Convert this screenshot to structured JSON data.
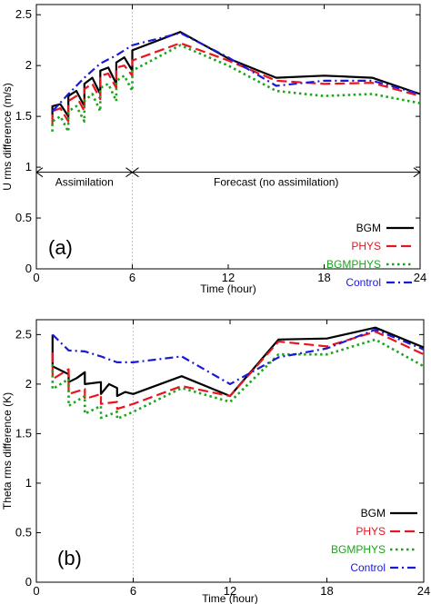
{
  "chart_data": [
    {
      "type": "line",
      "panel_label": "(a)",
      "xlabel": "Time (hour)",
      "ylabel": "U rms difference (m/s)",
      "xlim": [
        0,
        24
      ],
      "ylim": [
        0,
        2.6
      ],
      "xticks": [
        0,
        6,
        12,
        18,
        24
      ],
      "yticks": [
        0,
        0.5,
        1,
        1.5,
        2,
        2.5
      ],
      "ytick_labels": [
        "0",
        "0.5",
        "1",
        "1.5",
        "2",
        "2.5"
      ],
      "grid": false,
      "legend_position": "lower-right",
      "vertical_marker_x": 6,
      "annotations": {
        "assimilation_label": "Assimilation",
        "forecast_label": "Forecast (no assimilation)",
        "arrow_y": 0.95
      },
      "series": [
        {
          "name": "BGM",
          "color": "#000000",
          "dash": "solid",
          "points": [
            [
              1,
              1.45
            ],
            [
              1,
              1.6
            ],
            [
              1.5,
              1.62
            ],
            [
              2,
              1.5
            ],
            [
              2,
              1.7
            ],
            [
              2.5,
              1.75
            ],
            [
              3,
              1.6
            ],
            [
              3,
              1.82
            ],
            [
              3.5,
              1.88
            ],
            [
              4,
              1.72
            ],
            [
              4,
              1.95
            ],
            [
              4.5,
              1.98
            ],
            [
              5,
              1.82
            ],
            [
              5,
              2.03
            ],
            [
              5.5,
              2.08
            ],
            [
              6,
              1.95
            ],
            [
              6,
              2.15
            ],
            [
              9,
              2.33
            ],
            [
              12,
              2.07
            ],
            [
              15,
              1.88
            ],
            [
              18,
              1.9
            ],
            [
              21,
              1.88
            ],
            [
              24,
              1.72
            ]
          ]
        },
        {
          "name": "PHYS",
          "color": "#e8141e",
          "dash": "dashed",
          "points": [
            [
              1,
              1.42
            ],
            [
              1,
              1.55
            ],
            [
              1.5,
              1.58
            ],
            [
              2,
              1.45
            ],
            [
              2,
              1.65
            ],
            [
              2.5,
              1.7
            ],
            [
              3,
              1.55
            ],
            [
              3,
              1.77
            ],
            [
              3.5,
              1.82
            ],
            [
              4,
              1.67
            ],
            [
              4,
              1.9
            ],
            [
              4.5,
              1.92
            ],
            [
              5,
              1.78
            ],
            [
              5,
              1.98
            ],
            [
              5.5,
              2.0
            ],
            [
              6,
              1.9
            ],
            [
              6,
              2.05
            ],
            [
              9,
              2.22
            ],
            [
              12,
              2.05
            ],
            [
              15,
              1.85
            ],
            [
              18,
              1.82
            ],
            [
              21,
              1.83
            ],
            [
              24,
              1.7
            ]
          ]
        },
        {
          "name": "BGMPHYS",
          "color": "#1aa51a",
          "dash": "dotted",
          "points": [
            [
              1,
              1.35
            ],
            [
              1,
              1.45
            ],
            [
              1.5,
              1.5
            ],
            [
              2,
              1.35
            ],
            [
              2,
              1.55
            ],
            [
              2.5,
              1.6
            ],
            [
              3,
              1.45
            ],
            [
              3,
              1.65
            ],
            [
              3.5,
              1.72
            ],
            [
              4,
              1.55
            ],
            [
              4,
              1.78
            ],
            [
              4.5,
              1.82
            ],
            [
              5,
              1.65
            ],
            [
              5,
              1.85
            ],
            [
              5.5,
              1.9
            ],
            [
              6,
              1.75
            ],
            [
              6,
              1.95
            ],
            [
              9,
              2.2
            ],
            [
              12,
              2.0
            ],
            [
              15,
              1.75
            ],
            [
              18,
              1.7
            ],
            [
              21,
              1.72
            ],
            [
              24,
              1.63
            ]
          ]
        },
        {
          "name": "Control",
          "color": "#1a1ad6",
          "dash": "dashdot",
          "points": [
            [
              1,
              1.55
            ],
            [
              2,
              1.72
            ],
            [
              3,
              1.88
            ],
            [
              4,
              2.02
            ],
            [
              5,
              2.1
            ],
            [
              6,
              2.2
            ],
            [
              9,
              2.32
            ],
            [
              12,
              2.08
            ],
            [
              15,
              1.8
            ],
            [
              18,
              1.85
            ],
            [
              21,
              1.85
            ],
            [
              24,
              1.72
            ]
          ]
        }
      ]
    },
    {
      "type": "line",
      "panel_label": "(b)",
      "xlabel": "Time (hour)",
      "ylabel": "Theta rms difference (K)",
      "xlim": [
        0,
        24
      ],
      "ylim": [
        0,
        2.65
      ],
      "xticks": [
        0,
        6,
        12,
        18,
        24
      ],
      "yticks": [
        0,
        0.5,
        1,
        1.5,
        2,
        2.5
      ],
      "ytick_labels": [
        "0",
        "0.5",
        "1",
        "1.5",
        "2",
        "2.5"
      ],
      "grid": false,
      "legend_position": "lower-right",
      "vertical_marker_x": 6,
      "series": [
        {
          "name": "BGM",
          "color": "#000000",
          "dash": "solid",
          "points": [
            [
              1,
              2.5
            ],
            [
              1,
              2.18
            ],
            [
              2,
              2.1
            ],
            [
              2,
              2.02
            ],
            [
              2.5,
              2.06
            ],
            [
              3,
              2.12
            ],
            [
              3,
              2.0
            ],
            [
              4,
              2.02
            ],
            [
              4,
              1.9
            ],
            [
              4.5,
              2.0
            ],
            [
              5,
              1.96
            ],
            [
              5,
              1.88
            ],
            [
              5.5,
              1.92
            ],
            [
              6,
              1.9
            ],
            [
              9,
              2.08
            ],
            [
              12,
              1.88
            ],
            [
              15,
              2.45
            ],
            [
              18,
              2.46
            ],
            [
              21,
              2.57
            ],
            [
              24,
              2.37
            ]
          ]
        },
        {
          "name": "PHYS",
          "color": "#e8141e",
          "dash": "dashed",
          "points": [
            [
              1,
              2.32
            ],
            [
              1,
              2.05
            ],
            [
              2,
              2.15
            ],
            [
              2,
              1.9
            ],
            [
              3,
              1.95
            ],
            [
              3,
              1.85
            ],
            [
              4,
              1.9
            ],
            [
              4,
              1.8
            ],
            [
              5,
              1.82
            ],
            [
              5,
              1.75
            ],
            [
              6,
              1.8
            ],
            [
              9,
              1.98
            ],
            [
              12,
              1.88
            ],
            [
              15,
              2.43
            ],
            [
              18,
              2.38
            ],
            [
              21,
              2.53
            ],
            [
              24,
              2.3
            ]
          ]
        },
        {
          "name": "BGMPHYS",
          "color": "#1aa51a",
          "dash": "dotted",
          "points": [
            [
              1,
              2.2
            ],
            [
              1,
              1.95
            ],
            [
              2,
              2.05
            ],
            [
              2,
              1.78
            ],
            [
              3,
              1.88
            ],
            [
              3,
              1.7
            ],
            [
              4,
              1.78
            ],
            [
              4,
              1.66
            ],
            [
              5,
              1.72
            ],
            [
              5,
              1.65
            ],
            [
              6,
              1.72
            ],
            [
              9,
              1.96
            ],
            [
              12,
              1.82
            ],
            [
              15,
              2.3
            ],
            [
              18,
              2.3
            ],
            [
              21,
              2.45
            ],
            [
              24,
              2.18
            ]
          ]
        },
        {
          "name": "Control",
          "color": "#1a1ad6",
          "dash": "dashdot",
          "points": [
            [
              1,
              2.5
            ],
            [
              2,
              2.34
            ],
            [
              3,
              2.33
            ],
            [
              4,
              2.28
            ],
            [
              5,
              2.22
            ],
            [
              6,
              2.22
            ],
            [
              9,
              2.28
            ],
            [
              12,
              2.0
            ],
            [
              15,
              2.27
            ],
            [
              18,
              2.36
            ],
            [
              21,
              2.55
            ],
            [
              24,
              2.35
            ]
          ]
        }
      ]
    }
  ]
}
